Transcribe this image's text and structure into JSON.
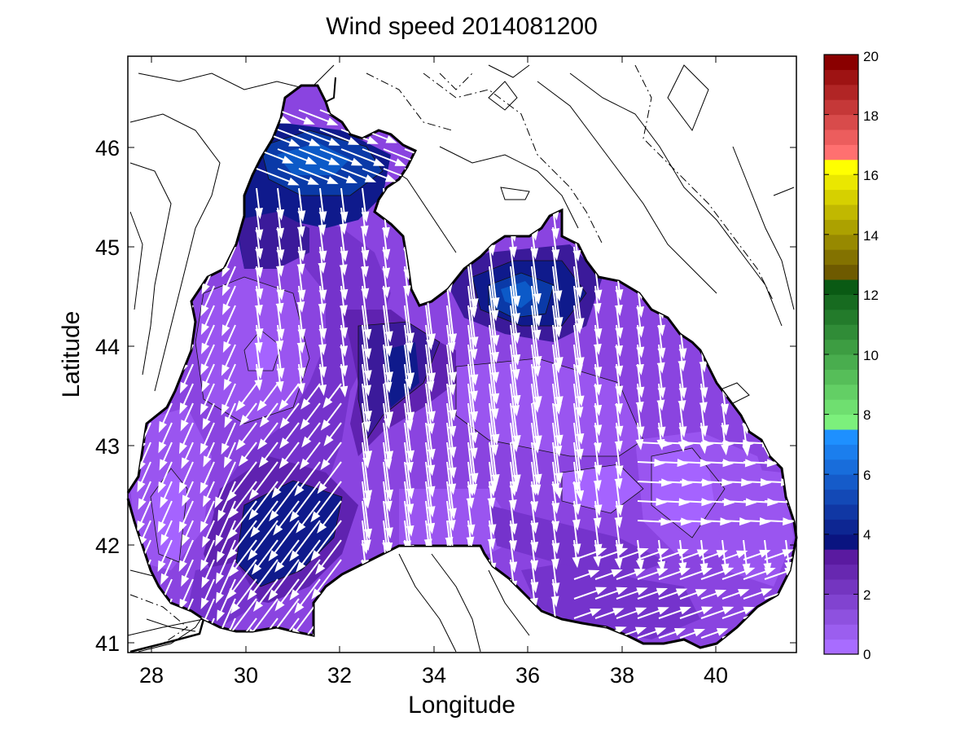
{
  "figure": {
    "title": "Wind speed 2014081200",
    "xlabel": "Longitude",
    "ylabel": "Latitude"
  },
  "map": {
    "x_ticks": [
      "28",
      "30",
      "32",
      "34",
      "36",
      "38",
      "40"
    ],
    "y_ticks": [
      "41",
      "42",
      "43",
      "44",
      "45",
      "46"
    ],
    "xlim": [
      27.5,
      41.7
    ],
    "ylim": [
      40.9,
      46.9
    ],
    "land_contour_color": "#000000",
    "vector_color": "#ffffff"
  },
  "colorbar": {
    "ticks": [
      "0",
      "2",
      "4",
      "6",
      "8",
      "10",
      "12",
      "14",
      "16",
      "18",
      "20"
    ],
    "range": [
      0,
      20
    ],
    "bands": [
      {
        "from": 0,
        "to": 3.5,
        "color_low": "#a86cff",
        "color_high": "#5a1aa0"
      },
      {
        "from": 3.5,
        "to": 7.5,
        "color_low": "#0a1480",
        "color_high": "#1e90ff"
      },
      {
        "from": 7.5,
        "to": 12.5,
        "color_low": "#7cf07c",
        "color_high": "#0a5a14"
      },
      {
        "from": 12.5,
        "to": 16.5,
        "color_low": "#6e5a00",
        "color_high": "#ffff00"
      },
      {
        "from": 16.5,
        "to": 20,
        "color_low": "#ff7070",
        "color_high": "#8a0000"
      }
    ]
  },
  "contour_fills": [
    "#a563ff",
    "#9a55f0",
    "#8a44e0",
    "#7533cc",
    "#5f22b0",
    "#3b1a9a",
    "#0f1a8c",
    "#0a3aa8",
    "#0c5ac8"
  ]
}
